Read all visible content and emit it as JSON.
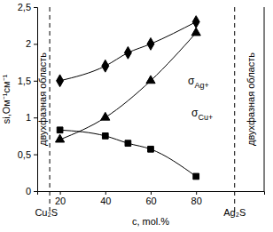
{
  "chart_data": {
    "type": "line",
    "y_label": "si,Ом⁻¹см⁻¹",
    "x_label": "c, mol.%",
    "xlim": [
      10,
      110
    ],
    "xticks": [
      20,
      40,
      60,
      80
    ],
    "ylim": [
      0,
      2.5
    ],
    "yticks": [
      0,
      {
        "value": 0.5,
        "label": "0,5"
      },
      1,
      {
        "value": 1.5,
        "label": "1,5"
      },
      2,
      {
        "value": 2.5,
        "label": "2,5"
      }
    ],
    "grid": false,
    "vlines": [
      15.5,
      97
    ],
    "annotations": [
      {
        "text": "Cu₂S",
        "x": 14
      },
      {
        "text": "Ag₂S",
        "x": 97
      },
      {
        "text": "двухфазная область",
        "x": 12.5
      },
      {
        "text": "двухфазная область",
        "x": 104
      }
    ],
    "series": [
      {
        "color": "#000000",
        "marker": "diamond",
        "line_style": "solid",
        "x": [
          20,
          40,
          50,
          60,
          80
        ],
        "values": [
          1.5,
          1.7,
          1.88,
          2.0,
          2.3
        ]
      },
      {
        "name": "σAg+",
        "color": "#000000",
        "marker": "triangle",
        "line_style": "solid",
        "x": [
          20,
          40,
          60,
          80
        ],
        "values": [
          0.7,
          1.0,
          1.5,
          2.15
        ]
      },
      {
        "name": "σCu+",
        "color": "#000000",
        "marker": "square",
        "line_style": "solid",
        "x": [
          20,
          40,
          50,
          60,
          80
        ],
        "values": [
          0.83,
          0.75,
          0.65,
          0.57,
          0.2
        ]
      }
    ]
  }
}
